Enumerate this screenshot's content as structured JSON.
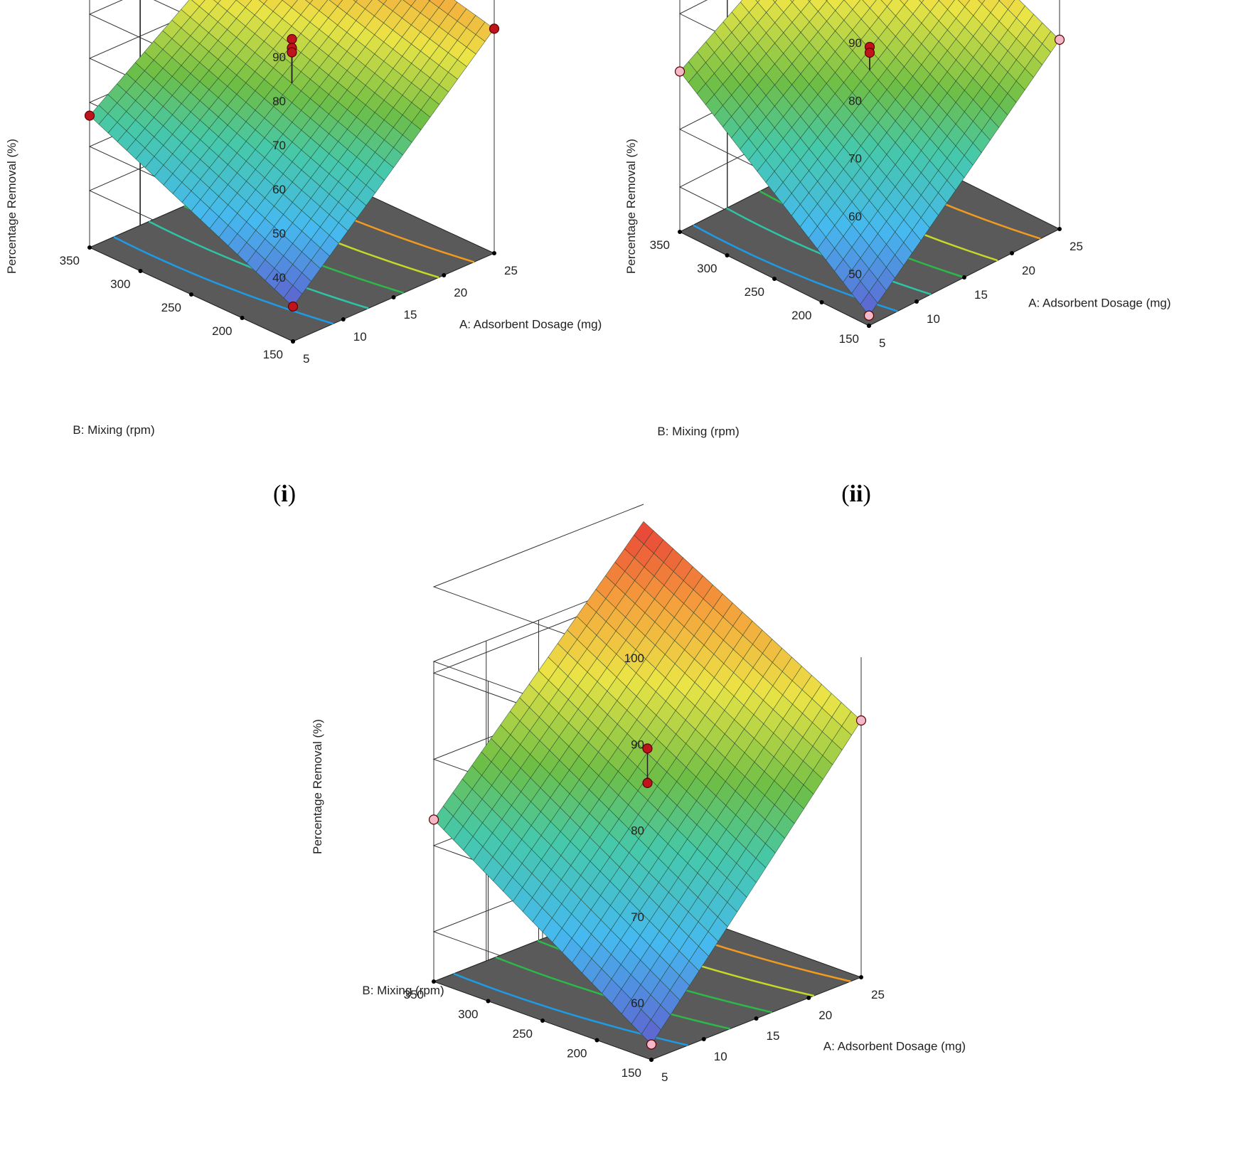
{
  "chart_data": [
    {
      "type": "surface3d",
      "panel_label": "i",
      "xlabel": "A: Adsorbent Dosage (mg)",
      "ylabel": "B: Mixing (rpm)",
      "zlabel": "Percentage Removal (%)",
      "x_ticks": [
        "5",
        "10",
        "15",
        "20",
        "25"
      ],
      "y_ticks": [
        "150",
        "200",
        "250",
        "300",
        "350"
      ],
      "z_ticks": [
        "40",
        "50",
        "60",
        "70",
        "80",
        "90"
      ],
      "xlim": [
        5,
        25
      ],
      "ylim": [
        150,
        350
      ],
      "zlim": [
        40,
        90
      ],
      "surface_corners": {
        "x5_y150": 35,
        "x5_y350": 57,
        "x25_y150": 78,
        "x25_y350": 90
      },
      "design_points": [
        {
          "x": 5,
          "y": 150,
          "z": 35
        },
        {
          "x": 5,
          "y": 350,
          "z": 57
        },
        {
          "x": 25,
          "y": 150,
          "z": 78
        },
        {
          "x": 25,
          "y": 350,
          "z": 90
        },
        {
          "x": 15,
          "y": 250,
          "z": 75
        },
        {
          "x": 15,
          "y": 250,
          "z": 73
        },
        {
          "x": 15,
          "y": 250,
          "z": 72
        }
      ],
      "contours": [
        {
          "x": 9,
          "color": "#1e9be6"
        },
        {
          "x": 12.5,
          "color": "#2ec4a6"
        },
        {
          "x": 16,
          "color": "#2db84a"
        },
        {
          "x": 19.5,
          "color": "#c4d928"
        },
        {
          "x": 23,
          "color": "#f29a20"
        }
      ]
    },
    {
      "type": "surface3d",
      "panel_label": "ii",
      "xlabel": "A: Adsorbent Dosage (mg)",
      "ylabel": "B: Mixing (rpm)",
      "zlabel": "Percentage Removal (%)",
      "x_ticks": [
        "5",
        "10",
        "15",
        "20",
        "25"
      ],
      "y_ticks": [
        "150",
        "200",
        "250",
        "300",
        "350"
      ],
      "z_ticks": [
        "50",
        "60",
        "70",
        "80",
        "90"
      ],
      "xlim": [
        5,
        25
      ],
      "ylim": [
        150,
        350
      ],
      "zlim": [
        50,
        90
      ],
      "surface_corners": {
        "x5_y150": 44,
        "x5_y350": 70,
        "x25_y150": 75,
        "x25_y350": 91
      },
      "design_points": [
        {
          "x": 5,
          "y": 150,
          "z": 44
        },
        {
          "x": 5,
          "y": 350,
          "z": 70
        },
        {
          "x": 25,
          "y": 150,
          "z": 75
        },
        {
          "x": 15,
          "y": 250,
          "z": 74
        },
        {
          "x": 15,
          "y": 250,
          "z": 73
        }
      ],
      "contours": [
        {
          "x": 8,
          "color": "#1e9be6"
        },
        {
          "x": 11.5,
          "color": "#2ec4a6"
        },
        {
          "x": 15,
          "color": "#2db84a"
        },
        {
          "x": 18.5,
          "color": "#c4d928"
        },
        {
          "x": 23,
          "color": "#f29a20"
        }
      ]
    },
    {
      "type": "surface3d",
      "panel_label": "iii",
      "xlabel": "A: Adsorbent Dosage (mg)",
      "ylabel": "B: Mixing (rpm)",
      "zlabel": "Percentage Removal (%)",
      "x_ticks": [
        "5",
        "10",
        "15",
        "20",
        "25"
      ],
      "y_ticks": [
        "150",
        "200",
        "250",
        "300",
        "350"
      ],
      "z_ticks": [
        "60",
        "70",
        "80",
        "90",
        "100"
      ],
      "xlim": [
        5,
        25
      ],
      "ylim": [
        150,
        350
      ],
      "zlim": [
        60,
        100
      ],
      "surface_corners": {
        "x5_y150": 56,
        "x5_y350": 73,
        "x25_y150": 84,
        "x25_y350": 98
      },
      "design_points": [
        {
          "x": 5,
          "y": 150,
          "z": 56
        },
        {
          "x": 5,
          "y": 350,
          "z": 73
        },
        {
          "x": 25,
          "y": 150,
          "z": 84
        },
        {
          "x": 15,
          "y": 250,
          "z": 81
        },
        {
          "x": 15,
          "y": 250,
          "z": 77
        }
      ],
      "contours": [
        {
          "x": 8.5,
          "color": "#1e9be6"
        },
        {
          "x": 12.5,
          "color": "#2db84a"
        },
        {
          "x": 16.5,
          "color": "#2db84a"
        },
        {
          "x": 20.5,
          "color": "#c4d928"
        },
        {
          "x": 24,
          "color": "#f29a20"
        }
      ]
    }
  ]
}
